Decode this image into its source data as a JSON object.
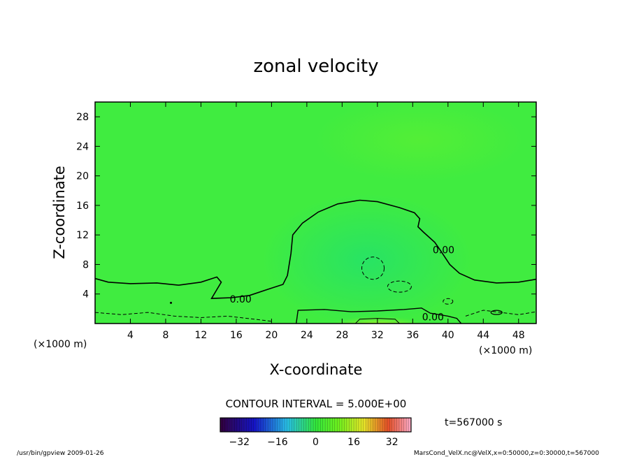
{
  "chart_data": {
    "type": "contour",
    "title": "zonal velocity",
    "xlabel": "X-coordinate",
    "ylabel": "Z-coordinate",
    "x_unit_left": "(×1000 m)",
    "x_unit_right": "(×1000 m)",
    "xlim": [
      0,
      50
    ],
    "ylim": [
      0,
      30
    ],
    "xticks": [
      4,
      8,
      12,
      16,
      20,
      24,
      28,
      32,
      36,
      40,
      44,
      48
    ],
    "yticks": [
      4,
      8,
      12,
      16,
      20,
      24,
      28
    ],
    "contour_interval_text": "CONTOUR INTERVAL = 5.000E+00",
    "contour_labels": [
      {
        "text": "0.00",
        "x": 16.5,
        "y": 3.3
      },
      {
        "text": "0.00",
        "x": 39.5,
        "y": 10.0
      },
      {
        "text": "0.00",
        "x": 38.3,
        "y": 0.9
      }
    ],
    "zero_contour": [
      [
        0,
        6.1
      ],
      [
        1.5,
        5.6
      ],
      [
        4,
        5.4
      ],
      [
        7,
        5.5
      ],
      [
        9.5,
        5.2
      ],
      [
        12,
        5.6
      ],
      [
        13.8,
        6.3
      ],
      [
        14.3,
        5.6
      ],
      [
        13.8,
        4.6
      ],
      [
        13.2,
        3.4
      ],
      [
        15.5,
        3.5
      ],
      [
        17.5,
        3.8
      ],
      [
        19.5,
        4.6
      ],
      [
        21.3,
        5.3
      ],
      [
        21.8,
        6.5
      ],
      [
        22.2,
        9.5
      ],
      [
        22.4,
        12.0
      ],
      [
        23.5,
        13.6
      ],
      [
        25.3,
        15.1
      ],
      [
        27.5,
        16.2
      ],
      [
        30,
        16.7
      ],
      [
        32,
        16.5
      ],
      [
        34.5,
        15.7
      ],
      [
        36.2,
        15.0
      ],
      [
        36.8,
        14.2
      ],
      [
        36.6,
        13.1
      ],
      [
        37.2,
        12.4
      ],
      [
        38.5,
        11.0
      ],
      [
        39.2,
        9.8
      ],
      [
        40.2,
        8.0
      ],
      [
        41.3,
        6.8
      ],
      [
        43,
        5.9
      ],
      [
        45.5,
        5.5
      ],
      [
        48,
        5.6
      ],
      [
        50,
        6.0
      ]
    ],
    "colorbar_ticks": [
      "−32",
      "−16",
      "0",
      "16",
      "32"
    ],
    "colorbar_range": [
      -40,
      40
    ],
    "time_label": "t=567000 s"
  },
  "footer": {
    "left": "/usr/bin/gpview   2009-01-26",
    "right": "MarsCond_VelX.nc@VelX,x=0:50000,z=0:30000,t=567000"
  }
}
